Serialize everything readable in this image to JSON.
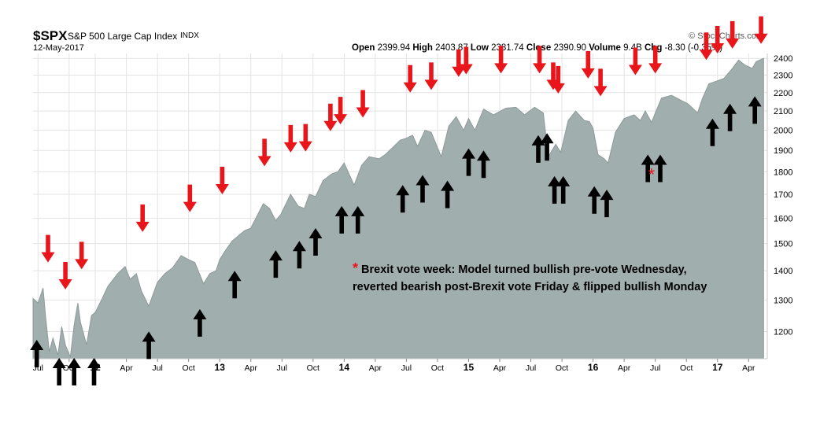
{
  "header": {
    "symbol": "$SPX",
    "name": "S&P 500 Large Cap Index",
    "type": "INDX",
    "date": "12-May-2017",
    "watermark": "© StockCharts.com",
    "open_label": "Open",
    "open": "2399.94",
    "high_label": "High",
    "high": "2403.87",
    "low_label": "Low",
    "low": "2381.74",
    "close_label": "Close",
    "close": "2390.90",
    "volume_label": "Volume",
    "volume": "9.4B",
    "chg_label": "Chg",
    "chg": "-8.30 (-0.35%)"
  },
  "annotation": {
    "star": "*",
    "line1": "Brexit vote week: Model turned bullish pre-vote Wednesday,",
    "line2": "reverted bearish post-Brexit vote Friday & flipped bullish Monday"
  },
  "colors": {
    "area_fill": "#a1aeae",
    "area_line": "#8e9a9a",
    "bearish_arrow": "#e8161b",
    "bullish_arrow": "#000000",
    "grid": "#e3e3e3"
  },
  "chart_data": {
    "type": "area",
    "title": "$SPX S&P 500 Large Cap Index",
    "scale": "log",
    "ylim": [
      1120,
      2430
    ],
    "xlim": [
      2011.5,
      2017.4
    ],
    "y_ticks": [
      1200,
      1300,
      1400,
      1500,
      1600,
      1700,
      1800,
      1900,
      2000,
      2100,
      2200,
      2300,
      2400
    ],
    "x_ticks": [
      {
        "t": 2011.54,
        "label": "Jul"
      },
      {
        "t": 2011.79,
        "label": "Oct"
      },
      {
        "t": 2012.0,
        "label": "12",
        "year": true
      },
      {
        "t": 2012.25,
        "label": "Apr"
      },
      {
        "t": 2012.5,
        "label": "Jul"
      },
      {
        "t": 2012.75,
        "label": "Oct"
      },
      {
        "t": 2013.0,
        "label": "13",
        "year": true
      },
      {
        "t": 2013.25,
        "label": "Apr"
      },
      {
        "t": 2013.5,
        "label": "Jul"
      },
      {
        "t": 2013.75,
        "label": "Oct"
      },
      {
        "t": 2014.0,
        "label": "14",
        "year": true
      },
      {
        "t": 2014.25,
        "label": "Apr"
      },
      {
        "t": 2014.5,
        "label": "Jul"
      },
      {
        "t": 2014.75,
        "label": "Oct"
      },
      {
        "t": 2015.0,
        "label": "15",
        "year": true
      },
      {
        "t": 2015.25,
        "label": "Apr"
      },
      {
        "t": 2015.5,
        "label": "Jul"
      },
      {
        "t": 2015.75,
        "label": "Oct"
      },
      {
        "t": 2016.0,
        "label": "16",
        "year": true
      },
      {
        "t": 2016.25,
        "label": "Apr"
      },
      {
        "t": 2016.5,
        "label": "Jul"
      },
      {
        "t": 2016.75,
        "label": "Oct"
      },
      {
        "t": 2017.0,
        "label": "17",
        "year": true
      },
      {
        "t": 2017.25,
        "label": "Apr"
      }
    ],
    "series": [
      {
        "name": "S&P 500 close",
        "points": [
          [
            2011.5,
            1305
          ],
          [
            2011.54,
            1290
          ],
          [
            2011.58,
            1340
          ],
          [
            2011.6,
            1250
          ],
          [
            2011.63,
            1140
          ],
          [
            2011.66,
            1180
          ],
          [
            2011.7,
            1130
          ],
          [
            2011.73,
            1215
          ],
          [
            2011.76,
            1160
          ],
          [
            2011.8,
            1125
          ],
          [
            2011.83,
            1220
          ],
          [
            2011.86,
            1290
          ],
          [
            2011.88,
            1230
          ],
          [
            2011.93,
            1160
          ],
          [
            2011.97,
            1250
          ],
          [
            2012.0,
            1260
          ],
          [
            2012.05,
            1300
          ],
          [
            2012.1,
            1345
          ],
          [
            2012.18,
            1390
          ],
          [
            2012.24,
            1415
          ],
          [
            2012.28,
            1370
          ],
          [
            2012.33,
            1390
          ],
          [
            2012.37,
            1330
          ],
          [
            2012.43,
            1280
          ],
          [
            2012.5,
            1360
          ],
          [
            2012.56,
            1390
          ],
          [
            2012.62,
            1410
          ],
          [
            2012.69,
            1455
          ],
          [
            2012.75,
            1440
          ],
          [
            2012.8,
            1430
          ],
          [
            2012.87,
            1355
          ],
          [
            2012.92,
            1390
          ],
          [
            2012.97,
            1400
          ],
          [
            2013.0,
            1440
          ],
          [
            2013.04,
            1470
          ],
          [
            2013.1,
            1510
          ],
          [
            2013.2,
            1550
          ],
          [
            2013.25,
            1560
          ],
          [
            2013.29,
            1600
          ],
          [
            2013.35,
            1660
          ],
          [
            2013.4,
            1640
          ],
          [
            2013.45,
            1590
          ],
          [
            2013.49,
            1615
          ],
          [
            2013.57,
            1700
          ],
          [
            2013.63,
            1650
          ],
          [
            2013.68,
            1640
          ],
          [
            2013.72,
            1700
          ],
          [
            2013.77,
            1690
          ],
          [
            2013.83,
            1760
          ],
          [
            2013.9,
            1790
          ],
          [
            2013.95,
            1800
          ],
          [
            2014.0,
            1840
          ],
          [
            2014.08,
            1740
          ],
          [
            2014.14,
            1830
          ],
          [
            2014.2,
            1870
          ],
          [
            2014.28,
            1860
          ],
          [
            2014.33,
            1880
          ],
          [
            2014.4,
            1920
          ],
          [
            2014.45,
            1950
          ],
          [
            2014.5,
            1960
          ],
          [
            2014.55,
            1975
          ],
          [
            2014.59,
            1920
          ],
          [
            2014.65,
            2000
          ],
          [
            2014.7,
            1990
          ],
          [
            2014.78,
            1870
          ],
          [
            2014.84,
            2020
          ],
          [
            2014.9,
            2070
          ],
          [
            2014.96,
            2000
          ],
          [
            2015.0,
            2060
          ],
          [
            2015.05,
            2000
          ],
          [
            2015.12,
            2110
          ],
          [
            2015.2,
            2080
          ],
          [
            2015.3,
            2115
          ],
          [
            2015.38,
            2120
          ],
          [
            2015.45,
            2080
          ],
          [
            2015.53,
            2120
          ],
          [
            2015.6,
            2090
          ],
          [
            2015.64,
            1870
          ],
          [
            2015.7,
            1930
          ],
          [
            2015.74,
            1890
          ],
          [
            2015.8,
            2050
          ],
          [
            2015.86,
            2100
          ],
          [
            2015.93,
            2050
          ],
          [
            2015.97,
            2045
          ],
          [
            2016.0,
            2010
          ],
          [
            2016.04,
            1880
          ],
          [
            2016.09,
            1860
          ],
          [
            2016.12,
            1840
          ],
          [
            2016.18,
            1990
          ],
          [
            2016.25,
            2060
          ],
          [
            2016.33,
            2080
          ],
          [
            2016.38,
            2050
          ],
          [
            2016.42,
            2100
          ],
          [
            2016.47,
            2040
          ],
          [
            2016.5,
            2090
          ],
          [
            2016.55,
            2170
          ],
          [
            2016.63,
            2185
          ],
          [
            2016.7,
            2160
          ],
          [
            2016.76,
            2140
          ],
          [
            2016.84,
            2090
          ],
          [
            2016.88,
            2170
          ],
          [
            2016.93,
            2250
          ],
          [
            2016.97,
            2260
          ],
          [
            2017.05,
            2280
          ],
          [
            2017.12,
            2340
          ],
          [
            2017.17,
            2390
          ],
          [
            2017.22,
            2360
          ],
          [
            2017.28,
            2340
          ],
          [
            2017.31,
            2380
          ],
          [
            2017.37,
            2400
          ]
        ]
      }
    ],
    "bearish_signals": [
      {
        "t": 2011.62,
        "y": 1430
      },
      {
        "t": 2011.76,
        "y": 1335
      },
      {
        "t": 2011.89,
        "y": 1405
      },
      {
        "t": 2012.38,
        "y": 1545
      },
      {
        "t": 2012.76,
        "y": 1625
      },
      {
        "t": 2013.02,
        "y": 1700
      },
      {
        "t": 2013.36,
        "y": 1825
      },
      {
        "t": 2013.57,
        "y": 1890
      },
      {
        "t": 2013.69,
        "y": 1895
      },
      {
        "t": 2013.89,
        "y": 1995
      },
      {
        "t": 2013.97,
        "y": 2030
      },
      {
        "t": 2014.15,
        "y": 2065
      },
      {
        "t": 2014.53,
        "y": 2200
      },
      {
        "t": 2014.7,
        "y": 2215
      },
      {
        "t": 2014.92,
        "y": 2290
      },
      {
        "t": 2014.98,
        "y": 2305
      },
      {
        "t": 2015.26,
        "y": 2310
      },
      {
        "t": 2015.57,
        "y": 2310
      },
      {
        "t": 2015.68,
        "y": 2215
      },
      {
        "t": 2015.72,
        "y": 2195
      },
      {
        "t": 2015.96,
        "y": 2280
      },
      {
        "t": 2016.06,
        "y": 2180
      },
      {
        "t": 2016.34,
        "y": 2300
      },
      {
        "t": 2016.5,
        "y": 2310
      },
      {
        "t": 2016.91,
        "y": 2390
      },
      {
        "t": 2017.0,
        "y": 2430
      },
      {
        "t": 2017.12,
        "y": 2460
      },
      {
        "t": 2017.35,
        "y": 2490
      }
    ],
    "bullish_signals": [
      {
        "t": 2011.53,
        "y": 1175
      },
      {
        "t": 2011.71,
        "y": 1060
      },
      {
        "t": 2011.83,
        "y": 1060
      },
      {
        "t": 2011.99,
        "y": 1085
      },
      {
        "t": 2012.43,
        "y": 1200
      },
      {
        "t": 2012.84,
        "y": 1270
      },
      {
        "t": 2013.12,
        "y": 1400
      },
      {
        "t": 2013.45,
        "y": 1475
      },
      {
        "t": 2013.64,
        "y": 1510
      },
      {
        "t": 2013.77,
        "y": 1560
      },
      {
        "t": 2013.98,
        "y": 1650
      },
      {
        "t": 2014.11,
        "y": 1650
      },
      {
        "t": 2014.47,
        "y": 1740
      },
      {
        "t": 2014.63,
        "y": 1785
      },
      {
        "t": 2014.83,
        "y": 1760
      },
      {
        "t": 2015.0,
        "y": 1910
      },
      {
        "t": 2015.12,
        "y": 1900
      },
      {
        "t": 2015.56,
        "y": 1975
      },
      {
        "t": 2015.63,
        "y": 1985
      },
      {
        "t": 2015.69,
        "y": 1780
      },
      {
        "t": 2015.76,
        "y": 1780
      },
      {
        "t": 2016.01,
        "y": 1735
      },
      {
        "t": 2016.11,
        "y": 1720
      },
      {
        "t": 2016.44,
        "y": 1880
      },
      {
        "t": 2016.54,
        "y": 1880
      },
      {
        "t": 2016.96,
        "y": 2060
      },
      {
        "t": 2017.1,
        "y": 2140
      },
      {
        "t": 2017.3,
        "y": 2180
      }
    ],
    "event_marker": {
      "t": 2016.47,
      "y": 1795,
      "label": "*"
    }
  }
}
